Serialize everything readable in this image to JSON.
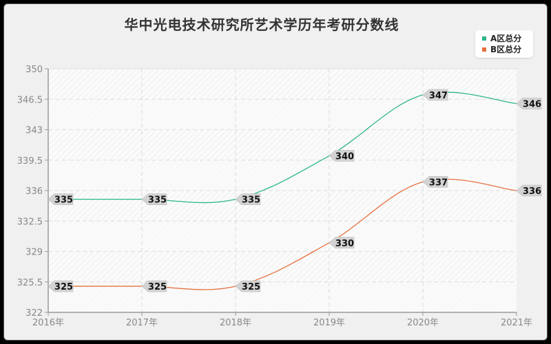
{
  "title": "华中光电技术研究所艺术学历年考研分数线",
  "legend": [
    {
      "label": "A区总分",
      "color": "#2bb58a"
    },
    {
      "label": "B区总分",
      "color": "#e5703f"
    }
  ],
  "chart_data": {
    "type": "line",
    "title": "华中光电技术研究所艺术学历年考研分数线",
    "xlabel": "",
    "ylabel": "",
    "categories": [
      "2016年",
      "2017年",
      "2018年",
      "2019年",
      "2020年",
      "2021年"
    ],
    "series": [
      {
        "name": "A区总分",
        "color": "#2bb58a",
        "values": [
          335,
          335,
          335,
          340,
          347,
          346
        ]
      },
      {
        "name": "B区总分",
        "color": "#e5703f",
        "values": [
          325,
          325,
          325,
          330,
          337,
          336
        ]
      }
    ],
    "yticks": [
      "350",
      "346.5",
      "343",
      "339.5",
      "336",
      "332.5",
      "329",
      "325.5",
      "322"
    ],
    "ylim": [
      322,
      350
    ],
    "grid": true,
    "legend_position": "top-right",
    "smooth": true
  }
}
